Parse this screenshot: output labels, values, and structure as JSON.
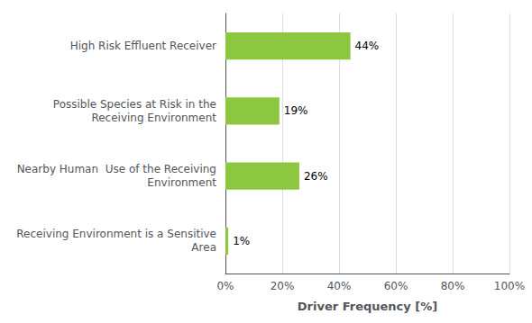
{
  "chart_data": {
    "type": "bar",
    "orientation": "horizontal",
    "categories": [
      "Receiving Environment is a Sensitive\n              Area",
      "Nearby Human  Use of the Receiving\n             Environment",
      "Possible Species at Risk in the\n       Receiving Environment",
      "High Risk Effluent Receiver"
    ],
    "values": [
      1,
      26,
      19,
      44
    ],
    "value_labels": [
      "1%",
      "26%",
      "19%",
      "44%"
    ],
    "data_labels": true,
    "color": "#8DC63F",
    "xlabel": "Driver Frequency [%]",
    "xlim": [
      0,
      100
    ],
    "xticks": [
      {
        "value": 0,
        "label": "0%"
      },
      {
        "value": 20,
        "label": "20%"
      },
      {
        "value": 40,
        "label": "40%"
      },
      {
        "value": 60,
        "label": "60%"
      },
      {
        "value": 80,
        "label": "80%"
      },
      {
        "value": 100,
        "label": "100%"
      }
    ],
    "grid": true
  }
}
